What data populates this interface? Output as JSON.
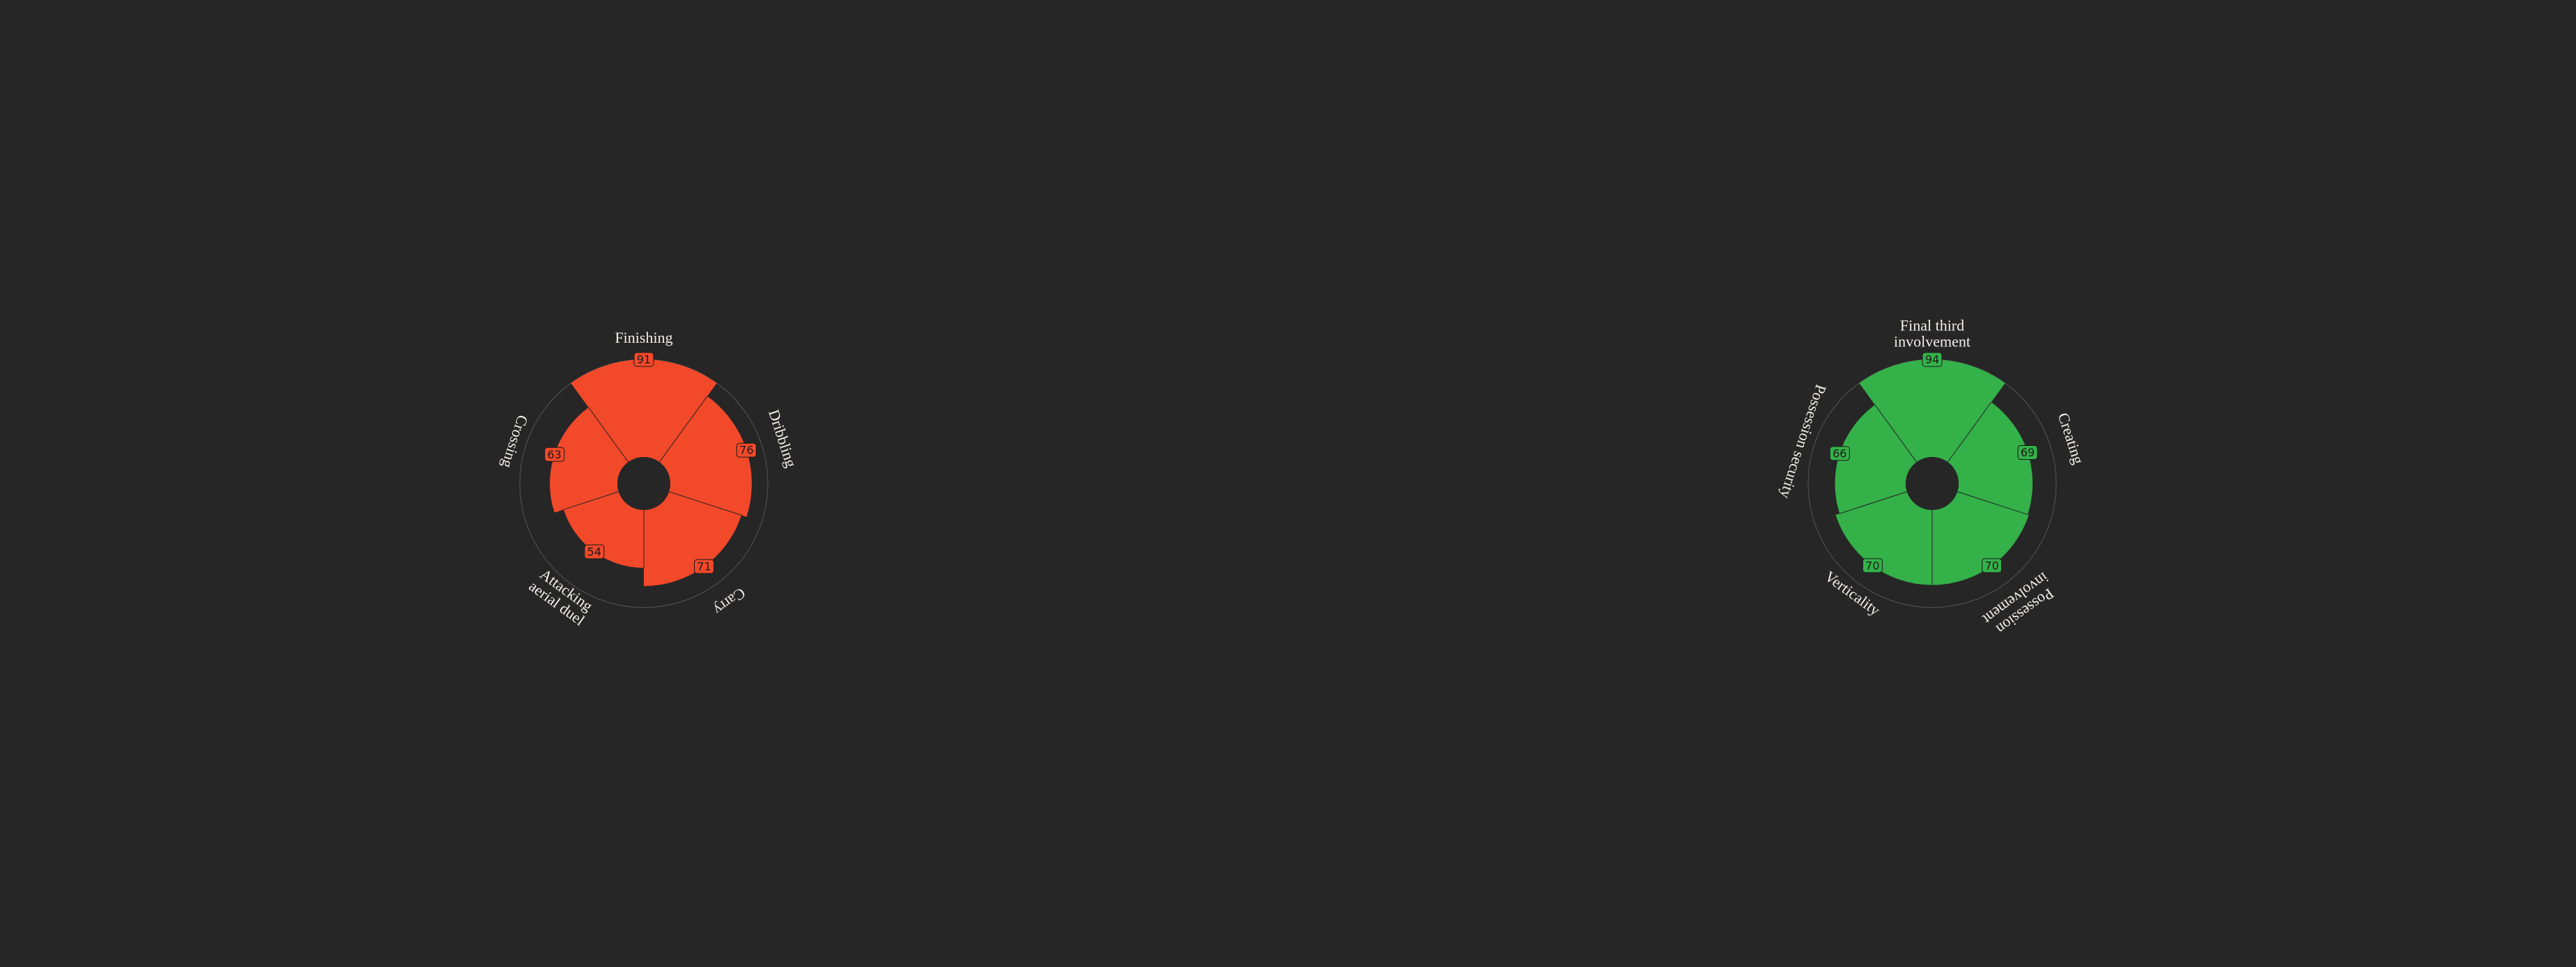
{
  "global": {
    "background_color": "#262626",
    "font_family": "Georgia, serif",
    "label_color": "#f2efe9",
    "value_text_color": "#1b1a19",
    "value_fontsize": 16,
    "label_fontsize": 22,
    "ring_stroke": "#555555",
    "spoke_stroke": "#222222",
    "inner_radius": 38,
    "outer_radius": 178,
    "svg_size": 560,
    "max_value": 91,
    "start_angle_deg": -90
  },
  "charts": [
    {
      "id": "left",
      "fill": "#f2492a",
      "slices": [
        {
          "label": "Finishing",
          "value": 91,
          "label_lines": [
            "Finishing"
          ]
        },
        {
          "label": "Dribbling",
          "value": 76,
          "label_lines": [
            "Dribbling"
          ]
        },
        {
          "label": "Carry",
          "value": 71,
          "label_lines": [
            "Carry"
          ]
        },
        {
          "label": "Attacking aerial duel",
          "value": 54,
          "label_lines": [
            "Attacking",
            "aerial duel"
          ]
        },
        {
          "label": "Crossing",
          "value": 63,
          "label_lines": [
            "Crossing"
          ]
        }
      ]
    },
    {
      "id": "right",
      "fill": "#34b149",
      "slices": [
        {
          "label": "Final third involvement",
          "value": 94,
          "label_lines": [
            "Final third",
            "involvement"
          ]
        },
        {
          "label": "Creating",
          "value": 69,
          "label_lines": [
            "Creating"
          ]
        },
        {
          "label": "Possession involvement",
          "value": 70,
          "label_lines": [
            "Possession",
            "involvement"
          ]
        },
        {
          "label": "Verticality",
          "value": 70,
          "label_lines": [
            "Verticality"
          ]
        },
        {
          "label": "Possession security",
          "value": 66,
          "label_lines": [
            "Possession security"
          ]
        }
      ]
    }
  ]
}
